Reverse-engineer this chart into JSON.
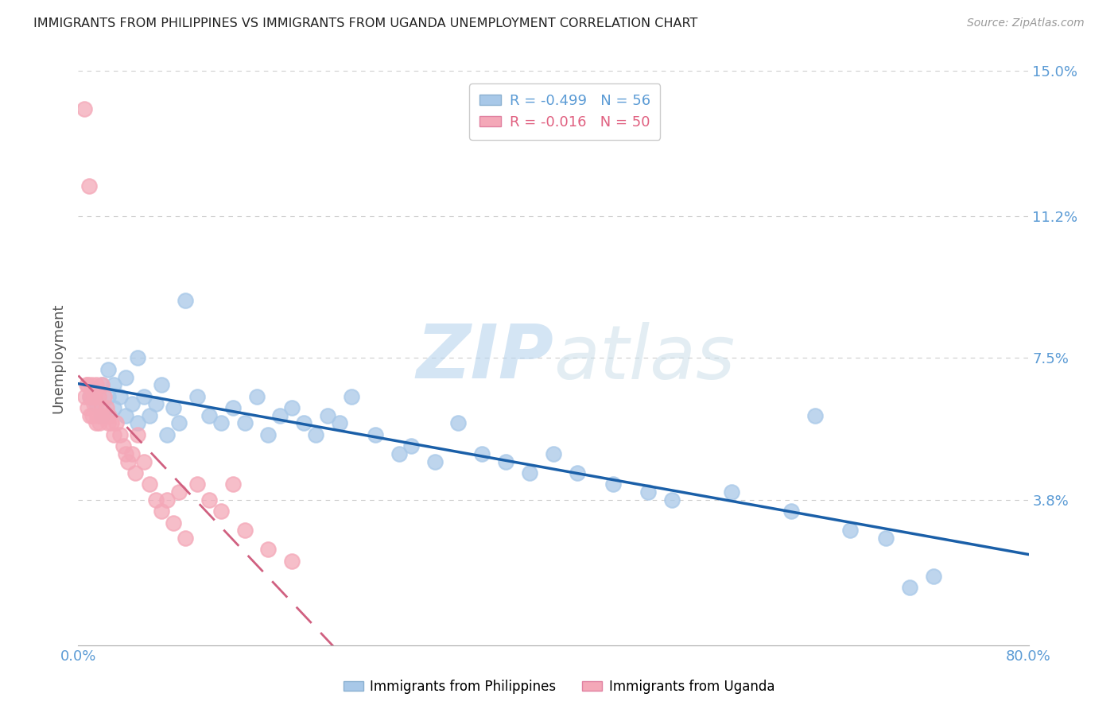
{
  "title": "IMMIGRANTS FROM PHILIPPINES VS IMMIGRANTS FROM UGANDA UNEMPLOYMENT CORRELATION CHART",
  "source": "Source: ZipAtlas.com",
  "ylabel": "Unemployment",
  "watermark_zip": "ZIP",
  "watermark_atlas": "atlas",
  "xlim": [
    0.0,
    0.8
  ],
  "ylim": [
    0.0,
    0.15
  ],
  "yticks": [
    0.038,
    0.075,
    0.112,
    0.15
  ],
  "ytick_labels": [
    "3.8%",
    "7.5%",
    "11.2%",
    "15.0%"
  ],
  "xticks": [
    0.0,
    0.2,
    0.4,
    0.6,
    0.8
  ],
  "philippines_color": "#a8c8e8",
  "uganda_color": "#f4a8b8",
  "philippines_line_color": "#1a5fa8",
  "uganda_line_color": "#d06080",
  "philippines_R": -0.499,
  "philippines_N": 56,
  "uganda_R": -0.016,
  "uganda_N": 50,
  "phil_x": [
    0.01,
    0.015,
    0.02,
    0.02,
    0.025,
    0.025,
    0.03,
    0.03,
    0.035,
    0.04,
    0.04,
    0.045,
    0.05,
    0.05,
    0.055,
    0.06,
    0.065,
    0.07,
    0.075,
    0.08,
    0.085,
    0.09,
    0.1,
    0.11,
    0.12,
    0.13,
    0.14,
    0.15,
    0.16,
    0.17,
    0.18,
    0.19,
    0.2,
    0.21,
    0.22,
    0.23,
    0.25,
    0.27,
    0.28,
    0.3,
    0.32,
    0.34,
    0.36,
    0.38,
    0.4,
    0.42,
    0.45,
    0.48,
    0.5,
    0.55,
    0.6,
    0.62,
    0.65,
    0.68,
    0.7,
    0.72
  ],
  "phil_y": [
    0.065,
    0.063,
    0.068,
    0.06,
    0.065,
    0.072,
    0.062,
    0.068,
    0.065,
    0.07,
    0.06,
    0.063,
    0.075,
    0.058,
    0.065,
    0.06,
    0.063,
    0.068,
    0.055,
    0.062,
    0.058,
    0.09,
    0.065,
    0.06,
    0.058,
    0.062,
    0.058,
    0.065,
    0.055,
    0.06,
    0.062,
    0.058,
    0.055,
    0.06,
    0.058,
    0.065,
    0.055,
    0.05,
    0.052,
    0.048,
    0.058,
    0.05,
    0.048,
    0.045,
    0.05,
    0.045,
    0.042,
    0.04,
    0.038,
    0.04,
    0.035,
    0.06,
    0.03,
    0.028,
    0.015,
    0.018
  ],
  "uganda_x": [
    0.005,
    0.006,
    0.007,
    0.008,
    0.008,
    0.009,
    0.01,
    0.01,
    0.011,
    0.012,
    0.012,
    0.013,
    0.014,
    0.015,
    0.015,
    0.016,
    0.017,
    0.018,
    0.019,
    0.02,
    0.02,
    0.022,
    0.024,
    0.025,
    0.026,
    0.028,
    0.03,
    0.032,
    0.035,
    0.038,
    0.04,
    0.042,
    0.045,
    0.048,
    0.05,
    0.055,
    0.06,
    0.065,
    0.07,
    0.075,
    0.08,
    0.085,
    0.09,
    0.1,
    0.11,
    0.12,
    0.13,
    0.14,
    0.16,
    0.18
  ],
  "uganda_y": [
    0.14,
    0.065,
    0.068,
    0.068,
    0.062,
    0.12,
    0.065,
    0.06,
    0.068,
    0.065,
    0.06,
    0.063,
    0.065,
    0.068,
    0.058,
    0.06,
    0.065,
    0.058,
    0.06,
    0.068,
    0.062,
    0.065,
    0.062,
    0.058,
    0.06,
    0.058,
    0.055,
    0.058,
    0.055,
    0.052,
    0.05,
    0.048,
    0.05,
    0.045,
    0.055,
    0.048,
    0.042,
    0.038,
    0.035,
    0.038,
    0.032,
    0.04,
    0.028,
    0.042,
    0.038,
    0.035,
    0.042,
    0.03,
    0.025,
    0.022
  ],
  "background_color": "#ffffff",
  "grid_color": "#cccccc",
  "title_color": "#222222",
  "axis_label_color": "#555555",
  "tick_color": "#5b9bd5"
}
